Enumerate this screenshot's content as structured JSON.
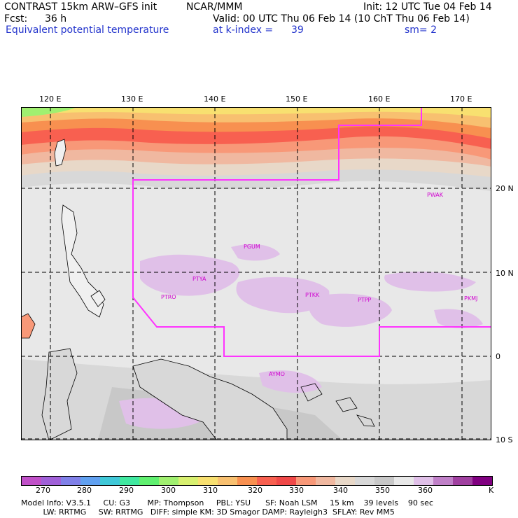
{
  "header": {
    "model": "CONTRAST 15km ARW–GFS init",
    "org": "NCAR/MMM",
    "init": "Init: 12 UTC Tue 04 Feb 14",
    "fcst_label": "Fcst:",
    "fcst_value": "36 h",
    "valid": "Valid: 00 UTC Thu 06 Feb 14 (10 ChT Thu 06 Feb 14)",
    "field": "Equivalent potential temperature",
    "level": "at k-index =",
    "level_value": "39",
    "smoothing": "sm= 2"
  },
  "map": {
    "lon_labels": [
      "120 E",
      "130 E",
      "140 E",
      "150 E",
      "160 E",
      "170 E"
    ],
    "lat_labels": [
      "20 N",
      "10 N",
      "0",
      "10 S"
    ],
    "stations": [
      "PWAK",
      "PGUM",
      "PTYA",
      "PTRO",
      "PTKK",
      "PTPP",
      "PKMJ",
      "AYMO"
    ],
    "highlight_color": "#ff33ff"
  },
  "colorbar": {
    "colors": [
      "#c050c8",
      "#a060d8",
      "#8080e8",
      "#60a0f0",
      "#40c8d8",
      "#40e8a0",
      "#60f070",
      "#a0f070",
      "#d8f070",
      "#f8e070",
      "#f8c070",
      "#f89050",
      "#f86050",
      "#f04848",
      "#f89878",
      "#f0b8a0",
      "#e8d8c8",
      "#d8d8d8",
      "#c8c8c8",
      "#e8e8e8",
      "#e0c0e8",
      "#c080c8",
      "#a040a0",
      "#800080"
    ],
    "labels": [
      "270",
      "280",
      "290",
      "300",
      "310",
      "320",
      "330",
      "340",
      "350",
      "360",
      "K"
    ]
  },
  "info": {
    "line1": "Model Info: V3.5.1     CU: G3       MP: Thompson     PBL: YSU      SF: Noah LSM     15 km    39 levels    90 sec",
    "line2": "         LW: RRTMG     SW: RRTMG   DIFF: simple KM: 3D Smagor DAMP: Rayleigh3  SFLAY: Rev MM5"
  }
}
